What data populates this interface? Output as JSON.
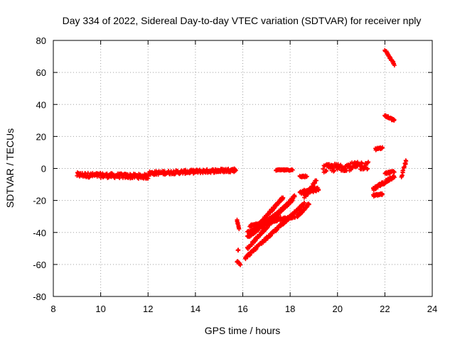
{
  "chart_data": {
    "type": "scatter",
    "title": "Day 334 of 2022, Sidereal Day-to-day VTEC variation (SDTVAR) for receiver nply",
    "xlabel": "GPS time / hours",
    "ylabel": "SDTVAR / TECUs",
    "xlim": [
      8,
      24
    ],
    "ylim": [
      -80,
      80
    ],
    "xticks": [
      8,
      10,
      12,
      14,
      16,
      18,
      20,
      22,
      24
    ],
    "yticks": [
      -80,
      -60,
      -40,
      -20,
      0,
      20,
      40,
      60,
      80
    ],
    "grid": true,
    "marker": "+",
    "colors": {
      "points": "#ff0000",
      "axes": "#000000",
      "grid": "#a0a0a0"
    },
    "series": [
      {
        "name": "nply",
        "segments": [
          {
            "x0": 9.0,
            "y0": -4,
            "x1": 12.0,
            "y1": -5,
            "spread": 1.5
          },
          {
            "x0": 12.0,
            "y0": -3,
            "x1": 15.7,
            "y1": -1,
            "spread": 1.2
          },
          {
            "x0": 15.75,
            "y0": -32,
            "x1": 15.85,
            "y1": -38,
            "spread": 0.5
          },
          {
            "x0": 15.8,
            "y0": -51,
            "x1": 15.8,
            "y1": -51,
            "spread": 0.2
          },
          {
            "x0": 15.75,
            "y0": -58,
            "x1": 15.9,
            "y1": -60,
            "spread": 0.5
          },
          {
            "x0": 16.2,
            "y0": -40,
            "x1": 17.6,
            "y1": -31,
            "spread": 0.8
          },
          {
            "x0": 16.2,
            "y0": -43,
            "x1": 17.7,
            "y1": -18,
            "spread": 0.8
          },
          {
            "x0": 16.2,
            "y0": -50,
            "x1": 18.2,
            "y1": -17,
            "spread": 0.8
          },
          {
            "x0": 16.3,
            "y0": -42,
            "x1": 18.1,
            "y1": -20,
            "spread": 0.8
          },
          {
            "x0": 16.3,
            "y0": -36,
            "x1": 18.2,
            "y1": -30,
            "spread": 0.8
          },
          {
            "x0": 16.1,
            "y0": -56,
            "x1": 18.6,
            "y1": -22,
            "spread": 0.8
          },
          {
            "x0": 17.4,
            "y0": -1,
            "x1": 18.1,
            "y1": -1,
            "spread": 0.4
          },
          {
            "x0": 18.3,
            "y0": -30,
            "x1": 18.8,
            "y1": -22,
            "spread": 0.8
          },
          {
            "x0": 18.4,
            "y0": -5,
            "x1": 18.7,
            "y1": -5,
            "spread": 0.6
          },
          {
            "x0": 18.6,
            "y0": -18,
            "x1": 19.1,
            "y1": -8,
            "spread": 1.5
          },
          {
            "x0": 18.4,
            "y0": -15,
            "x1": 19.2,
            "y1": -13,
            "spread": 1.2
          },
          {
            "x0": 19.4,
            "y0": 0,
            "x1": 21.3,
            "y1": 2,
            "spread": 2.5
          },
          {
            "x0": 21.6,
            "y0": 12,
            "x1": 21.9,
            "y1": 13,
            "spread": 0.6
          },
          {
            "x0": 21.5,
            "y0": -13,
            "x1": 22.4,
            "y1": -5,
            "spread": 1.0
          },
          {
            "x0": 21.5,
            "y0": -17,
            "x1": 21.9,
            "y1": -16,
            "spread": 0.6
          },
          {
            "x0": 22.0,
            "y0": -3,
            "x1": 22.4,
            "y1": -2,
            "spread": 0.6
          },
          {
            "x0": 22.0,
            "y0": 33,
            "x1": 22.4,
            "y1": 30,
            "spread": 0.6
          },
          {
            "x0": 22.0,
            "y0": 74,
            "x1": 22.4,
            "y1": 65,
            "spread": 0.6
          },
          {
            "x0": 22.7,
            "y0": -5,
            "x1": 22.9,
            "y1": 5,
            "spread": 1.0
          }
        ]
      }
    ]
  }
}
